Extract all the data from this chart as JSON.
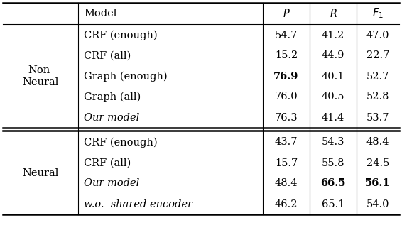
{
  "col_headers": [
    "Model",
    "P",
    "R",
    "F1"
  ],
  "row_group1_label": "Non-\nNeural",
  "row_group2_label": "Neural",
  "group1_rows": [
    {
      "model": "CRF (enough)",
      "italic": false,
      "P": "54.7",
      "R": "41.2",
      "F1": "47.0",
      "bold_P": false,
      "bold_R": false,
      "bold_F1": false
    },
    {
      "model": "CRF (all)",
      "italic": false,
      "P": "15.2",
      "R": "44.9",
      "F1": "22.7",
      "bold_P": false,
      "bold_R": false,
      "bold_F1": false
    },
    {
      "model": "Graph (enough)",
      "italic": false,
      "P": "76.9",
      "R": "40.1",
      "F1": "52.7",
      "bold_P": true,
      "bold_R": false,
      "bold_F1": false
    },
    {
      "model": "Graph (all)",
      "italic": false,
      "P": "76.0",
      "R": "40.5",
      "F1": "52.8",
      "bold_P": false,
      "bold_R": false,
      "bold_F1": false
    },
    {
      "model": "Our model",
      "italic": true,
      "P": "76.3",
      "R": "41.4",
      "F1": "53.7",
      "bold_P": false,
      "bold_R": false,
      "bold_F1": false
    }
  ],
  "group2_rows": [
    {
      "model": "CRF (enough)",
      "italic": false,
      "P": "43.7",
      "R": "54.3",
      "F1": "48.4",
      "bold_P": false,
      "bold_R": false,
      "bold_F1": false
    },
    {
      "model": "CRF (all)",
      "italic": false,
      "P": "15.7",
      "R": "55.8",
      "F1": "24.5",
      "bold_P": false,
      "bold_R": false,
      "bold_F1": false
    },
    {
      "model": "Our model",
      "italic": true,
      "P": "48.4",
      "R": "66.5",
      "F1": "56.1",
      "bold_P": false,
      "bold_R": true,
      "bold_F1": true
    },
    {
      "model": "w.o.  shared encoder",
      "italic": true,
      "P": "46.2",
      "R": "65.1",
      "F1": "54.0",
      "bold_P": false,
      "bold_R": false,
      "bold_F1": false
    }
  ],
  "bg_color": "#ffffff",
  "text_color": "#000000",
  "line_color": "#000000",
  "font_size": 10.5,
  "header_font_size": 10.5,
  "lw_thick": 1.8,
  "lw_thin": 0.8,
  "lw_mid": 1.0
}
